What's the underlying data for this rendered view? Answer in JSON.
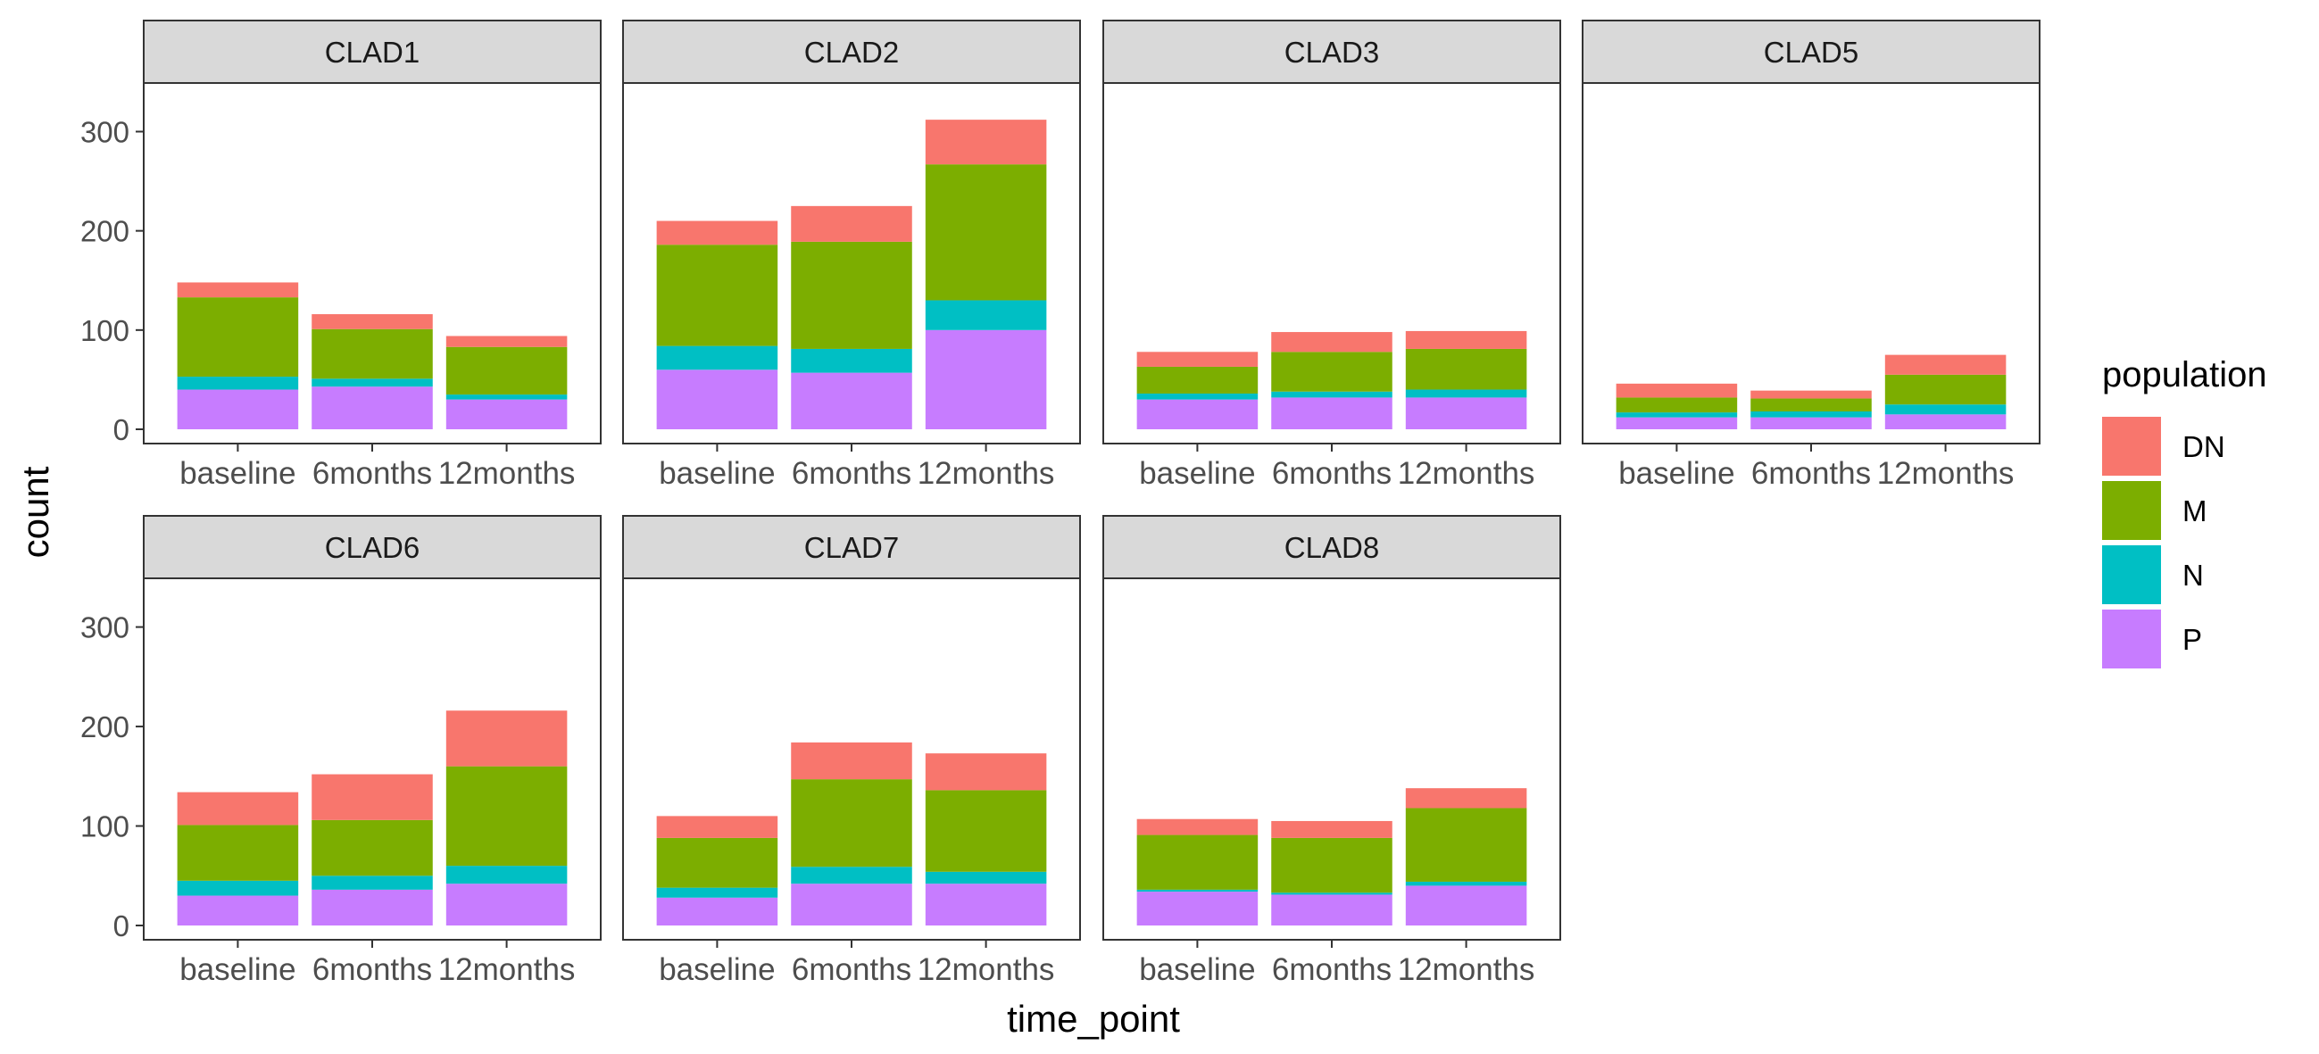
{
  "chart_data": {
    "type": "bar",
    "stacked": true,
    "xlabel": "time_point",
    "ylabel": "count",
    "ylim": [
      0,
      340
    ],
    "yticks": [
      0,
      100,
      200,
      300
    ],
    "categories": [
      "baseline",
      "6months",
      "12months"
    ],
    "legend": {
      "title": "population",
      "position": "right",
      "entries": [
        {
          "name": "DN",
          "color": "#F8766D"
        },
        {
          "name": "M",
          "color": "#7CAE00"
        },
        {
          "name": "N",
          "color": "#00BFC4"
        },
        {
          "name": "P",
          "color": "#C77CFF"
        }
      ]
    },
    "stack_order_bottom_to_top": [
      "P",
      "N",
      "M",
      "DN"
    ],
    "panels": [
      {
        "title": "CLAD1",
        "series": [
          {
            "name": "P",
            "values": [
              40,
              43,
              30
            ]
          },
          {
            "name": "N",
            "values": [
              13,
              8,
              5
            ]
          },
          {
            "name": "M",
            "values": [
              80,
              50,
              48
            ]
          },
          {
            "name": "DN",
            "values": [
              15,
              15,
              11
            ]
          }
        ]
      },
      {
        "title": "CLAD2",
        "series": [
          {
            "name": "P",
            "values": [
              60,
              57,
              100
            ]
          },
          {
            "name": "N",
            "values": [
              24,
              24,
              30
            ]
          },
          {
            "name": "M",
            "values": [
              102,
              108,
              137
            ]
          },
          {
            "name": "DN",
            "values": [
              24,
              36,
              45
            ]
          }
        ]
      },
      {
        "title": "CLAD3",
        "series": [
          {
            "name": "P",
            "values": [
              30,
              32,
              32
            ]
          },
          {
            "name": "N",
            "values": [
              6,
              6,
              8
            ]
          },
          {
            "name": "M",
            "values": [
              27,
              40,
              41
            ]
          },
          {
            "name": "DN",
            "values": [
              15,
              20,
              18
            ]
          }
        ]
      },
      {
        "title": "CLAD5",
        "series": [
          {
            "name": "P",
            "values": [
              12,
              12,
              15
            ]
          },
          {
            "name": "N",
            "values": [
              5,
              6,
              10
            ]
          },
          {
            "name": "M",
            "values": [
              15,
              13,
              30
            ]
          },
          {
            "name": "DN",
            "values": [
              14,
              8,
              20
            ]
          }
        ]
      },
      {
        "title": "CLAD6",
        "series": [
          {
            "name": "P",
            "values": [
              30,
              36,
              42
            ]
          },
          {
            "name": "N",
            "values": [
              15,
              14,
              18
            ]
          },
          {
            "name": "M",
            "values": [
              56,
              56,
              100
            ]
          },
          {
            "name": "DN",
            "values": [
              33,
              46,
              56
            ]
          }
        ]
      },
      {
        "title": "CLAD7",
        "series": [
          {
            "name": "P",
            "values": [
              28,
              42,
              42
            ]
          },
          {
            "name": "N",
            "values": [
              10,
              17,
              12
            ]
          },
          {
            "name": "M",
            "values": [
              50,
              88,
              82
            ]
          },
          {
            "name": "DN",
            "values": [
              22,
              37,
              37
            ]
          }
        ]
      },
      {
        "title": "CLAD8",
        "series": [
          {
            "name": "P",
            "values": [
              34,
              31,
              40
            ]
          },
          {
            "name": "N",
            "values": [
              2,
              2,
              4
            ]
          },
          {
            "name": "M",
            "values": [
              55,
              55,
              74
            ]
          },
          {
            "name": "DN",
            "values": [
              16,
              17,
              20
            ]
          }
        ]
      }
    ]
  }
}
